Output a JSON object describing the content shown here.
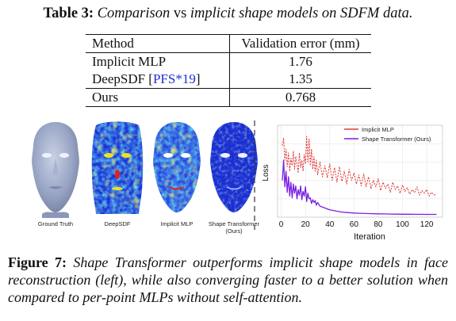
{
  "table": {
    "label": "Table 3:",
    "title_before": "Comparison",
    "title_vs": " vs ",
    "title_after": "implicit shape models on SDFM data.",
    "headers": [
      "Method",
      "Validation error (mm)"
    ],
    "rows": [
      {
        "method": "Implicit MLP",
        "cite": "",
        "error": "1.76"
      },
      {
        "method": "DeepSDF [",
        "cite": "PFS*19",
        "method_end": "]",
        "error": "1.35"
      },
      {
        "method": "Ours",
        "cite": "",
        "error": "0.768"
      }
    ]
  },
  "faces": {
    "labels": [
      "Ground Truth",
      "DeepSDF",
      "Implicit MLP",
      "Shape Transformer",
      "(Ours)"
    ],
    "colors": {
      "gt": "#9aa6c6",
      "map_bg": "#1c33d8",
      "map_mid": "#23c7e0",
      "map_hot": "#f2e01f",
      "map_red": "#e02020"
    }
  },
  "chart_data": {
    "type": "line",
    "xlabel": "Iteration",
    "ylabel": "Loss",
    "xlim": [
      -3,
      133
    ],
    "xticks": [
      0,
      20,
      40,
      60,
      80,
      100,
      120
    ],
    "ylim": [
      0,
      1
    ],
    "yticks_shown": false,
    "legend_position": "top-right",
    "series": [
      {
        "name": "Implicit MLP",
        "color": "#e03b3b",
        "dash": true,
        "x": [
          1,
          2,
          3,
          4,
          5,
          6,
          7,
          8,
          9,
          10,
          11,
          12,
          13,
          14,
          15,
          16,
          17,
          18,
          19,
          20,
          21,
          22,
          23,
          24,
          25,
          26,
          27,
          28,
          29,
          30,
          32,
          34,
          36,
          38,
          40,
          42,
          44,
          46,
          48,
          50,
          52,
          54,
          56,
          58,
          60,
          62,
          64,
          66,
          68,
          70,
          72,
          74,
          76,
          78,
          80,
          82,
          84,
          86,
          88,
          90,
          92,
          94,
          96,
          98,
          100,
          102,
          104,
          106,
          108,
          110,
          112,
          114,
          116,
          118,
          120,
          122,
          124,
          126,
          128
        ],
        "values": [
          0.78,
          0.86,
          0.62,
          0.74,
          0.55,
          0.7,
          0.5,
          0.64,
          0.56,
          0.72,
          0.52,
          0.66,
          0.58,
          0.48,
          0.7,
          0.54,
          0.62,
          0.5,
          0.68,
          0.58,
          0.88,
          0.6,
          0.85,
          0.56,
          0.74,
          0.52,
          0.66,
          0.5,
          0.62,
          0.46,
          0.6,
          0.44,
          0.56,
          0.43,
          0.58,
          0.4,
          0.54,
          0.38,
          0.55,
          0.39,
          0.5,
          0.36,
          0.52,
          0.4,
          0.48,
          0.36,
          0.46,
          0.34,
          0.47,
          0.33,
          0.44,
          0.31,
          0.4,
          0.33,
          0.42,
          0.29,
          0.38,
          0.31,
          0.36,
          0.27,
          0.38,
          0.3,
          0.34,
          0.26,
          0.35,
          0.28,
          0.32,
          0.25,
          0.3,
          0.27,
          0.33,
          0.24,
          0.29,
          0.26,
          0.3,
          0.23,
          0.27,
          0.24,
          0.25
        ]
      },
      {
        "name": "Shape Transformer (Ours)",
        "color": "#7a1fe0",
        "dash": false,
        "x": [
          1,
          2,
          3,
          4,
          5,
          6,
          7,
          8,
          9,
          10,
          11,
          12,
          13,
          14,
          15,
          16,
          17,
          18,
          19,
          20,
          21,
          22,
          23,
          24,
          25,
          26,
          27,
          28,
          29,
          30,
          32,
          34,
          36,
          38,
          40,
          42,
          44,
          46,
          48,
          50,
          55,
          60,
          65,
          70,
          75,
          80,
          85,
          90,
          95,
          100,
          105,
          110,
          115,
          120,
          125,
          128
        ],
        "values": [
          0.4,
          0.62,
          0.33,
          0.5,
          0.27,
          0.44,
          0.23,
          0.38,
          0.21,
          0.36,
          0.26,
          0.34,
          0.2,
          0.3,
          0.24,
          0.34,
          0.19,
          0.28,
          0.23,
          0.33,
          0.17,
          0.26,
          0.2,
          0.21,
          0.15,
          0.19,
          0.16,
          0.18,
          0.13,
          0.16,
          0.12,
          0.11,
          0.1,
          0.09,
          0.08,
          0.075,
          0.07,
          0.065,
          0.06,
          0.055,
          0.05,
          0.045,
          0.042,
          0.04,
          0.038,
          0.036,
          0.035,
          0.034,
          0.033,
          0.032,
          0.032,
          0.031,
          0.031,
          0.03,
          0.03,
          0.03
        ]
      }
    ]
  },
  "caption": {
    "label": "Figure 7:",
    "text": "Shape Transformer outperforms implicit shape models in face reconstruction (left), while also converging faster to a better solution when compared to per-point MLPs without self-attention."
  }
}
